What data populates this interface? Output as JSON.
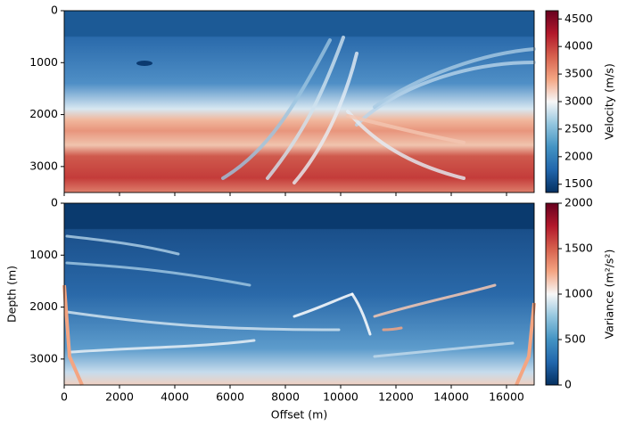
{
  "chart_data": [
    {
      "type": "heatmap",
      "xlim": [
        0,
        17000
      ],
      "xticks": [
        0,
        2000,
        4000,
        6000,
        8000,
        10000,
        12000,
        14000,
        16000
      ],
      "ylim": [
        3500,
        0
      ],
      "yticks": [
        0,
        1000,
        2000,
        3000
      ],
      "colormap": [
        "#053061",
        "#2166ac",
        "#4393c3",
        "#92c5de",
        "#f7f7f7",
        "#f4a582",
        "#d6604d",
        "#b2182b",
        "#67001f"
      ],
      "colorbar": {
        "label": "Velocity (m/s)",
        "lim": [
          1350,
          4650
        ],
        "ticks": [
          1500,
          2000,
          2500,
          3000,
          3500,
          4000,
          4500
        ]
      }
    },
    {
      "type": "heatmap",
      "xlabel": "Offset (m)",
      "ylabel": "Depth (m)",
      "xlim": [
        0,
        17000
      ],
      "xticks": [
        0,
        2000,
        4000,
        6000,
        8000,
        10000,
        12000,
        14000,
        16000
      ],
      "ylim": [
        3500,
        0
      ],
      "yticks": [
        0,
        1000,
        2000,
        3000
      ],
      "colormap": [
        "#053061",
        "#2166ac",
        "#4393c3",
        "#92c5de",
        "#f7f7f7",
        "#f4a582",
        "#d6604d",
        "#b2182b",
        "#67001f"
      ],
      "colorbar": {
        "label": "Variance (m²/s²)",
        "lim": [
          0,
          2000
        ],
        "ticks": [
          0,
          500,
          1000,
          1500,
          2000
        ]
      }
    }
  ]
}
